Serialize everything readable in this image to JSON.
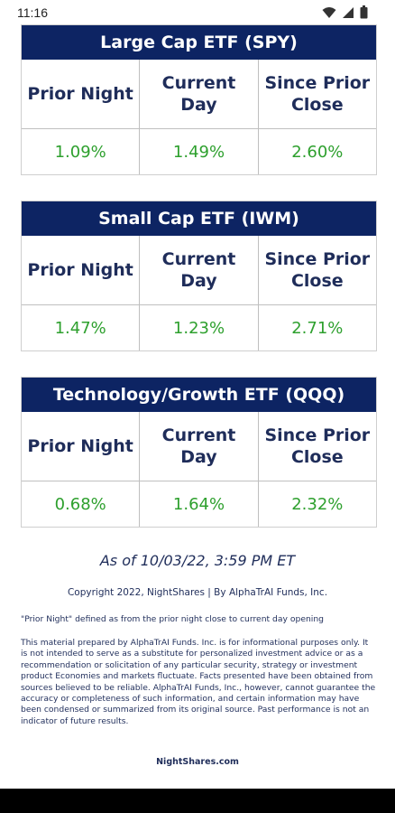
{
  "status_bar": {
    "time": "11:16",
    "icons": [
      "wifi-icon",
      "cellular-signal-icon",
      "battery-icon"
    ]
  },
  "etfs": [
    {
      "title": "Large Cap ETF (SPY)",
      "headers": [
        "Prior Night",
        "Current Day",
        "Since Prior Close"
      ],
      "values": [
        "1.09%",
        "1.49%",
        "2.60%"
      ]
    },
    {
      "title": "Small Cap ETF (IWM)",
      "headers": [
        "Prior Night",
        "Current Day",
        "Since Prior Close"
      ],
      "values": [
        "1.47%",
        "1.23%",
        "2.71%"
      ]
    },
    {
      "title": "Technology/Growth ETF (QQQ)",
      "headers": [
        "Prior Night",
        "Current Day",
        "Since Prior Close"
      ],
      "values": [
        "0.68%",
        "1.64%",
        "2.32%"
      ]
    }
  ],
  "footer": {
    "as_of": "As of 10/03/22, 3:59 PM ET",
    "copyright": "Copyright 2022, NightShares | By AlphaTrAI Funds, Inc.",
    "prior_night_note": "\"Prior Night\" defined as from the prior night close to current day opening",
    "disclaimer": "This material prepared by AlphaTrAI Funds. Inc. is for informational purposes only. It is not intended to serve as a substitute for personalized investment advice or as a recommendation or solicitation of any particular security, strategy or investment product Economies and markets fluctuate. Facts presented have been obtained from sources believed to be reliable. AlphaTrAI Funds, Inc., however, cannot guarantee the accuracy or completeness of such information, and certain information may have been condensed or summarized from its original source. Past performance is not an indicator of future results.",
    "website": "NightShares.com"
  },
  "colors": {
    "header_bg": "#0d2463",
    "positive": "#2ea02e",
    "text": "#1f2d5a"
  }
}
